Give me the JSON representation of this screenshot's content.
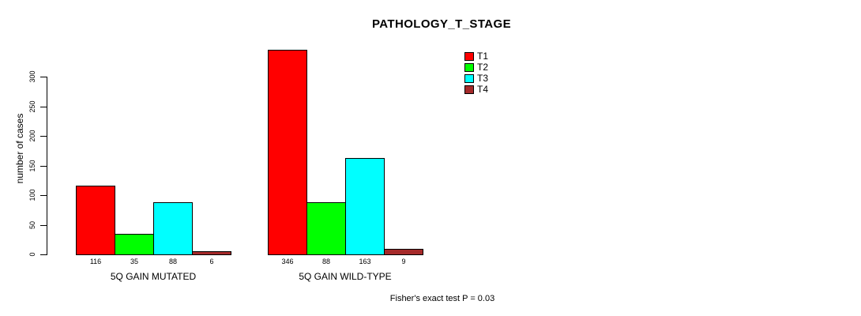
{
  "chart_data": {
    "type": "bar",
    "title": "PATHOLOGY_T_STAGE",
    "ylabel": "number of cases",
    "xlabel": "",
    "groups": [
      {
        "label": "5Q GAIN MUTATED",
        "values": [
          116,
          35,
          88,
          6
        ]
      },
      {
        "label": "5Q GAIN WILD-TYPE",
        "values": [
          346,
          88,
          163,
          9
        ]
      }
    ],
    "series": [
      {
        "name": "T1",
        "color": "#ff0000"
      },
      {
        "name": "T2",
        "color": "#00ff00"
      },
      {
        "name": "T3",
        "color": "#00ffff"
      },
      {
        "name": "T4",
        "color": "#a52a2a"
      }
    ],
    "yticks": [
      0,
      50,
      100,
      150,
      200,
      250,
      300
    ],
    "ylim": [
      0,
      350
    ],
    "grid": false,
    "legend_position": "top-right",
    "bar_border_color": "#000000",
    "annotation": "Fisher's exact test P = 0.03"
  }
}
